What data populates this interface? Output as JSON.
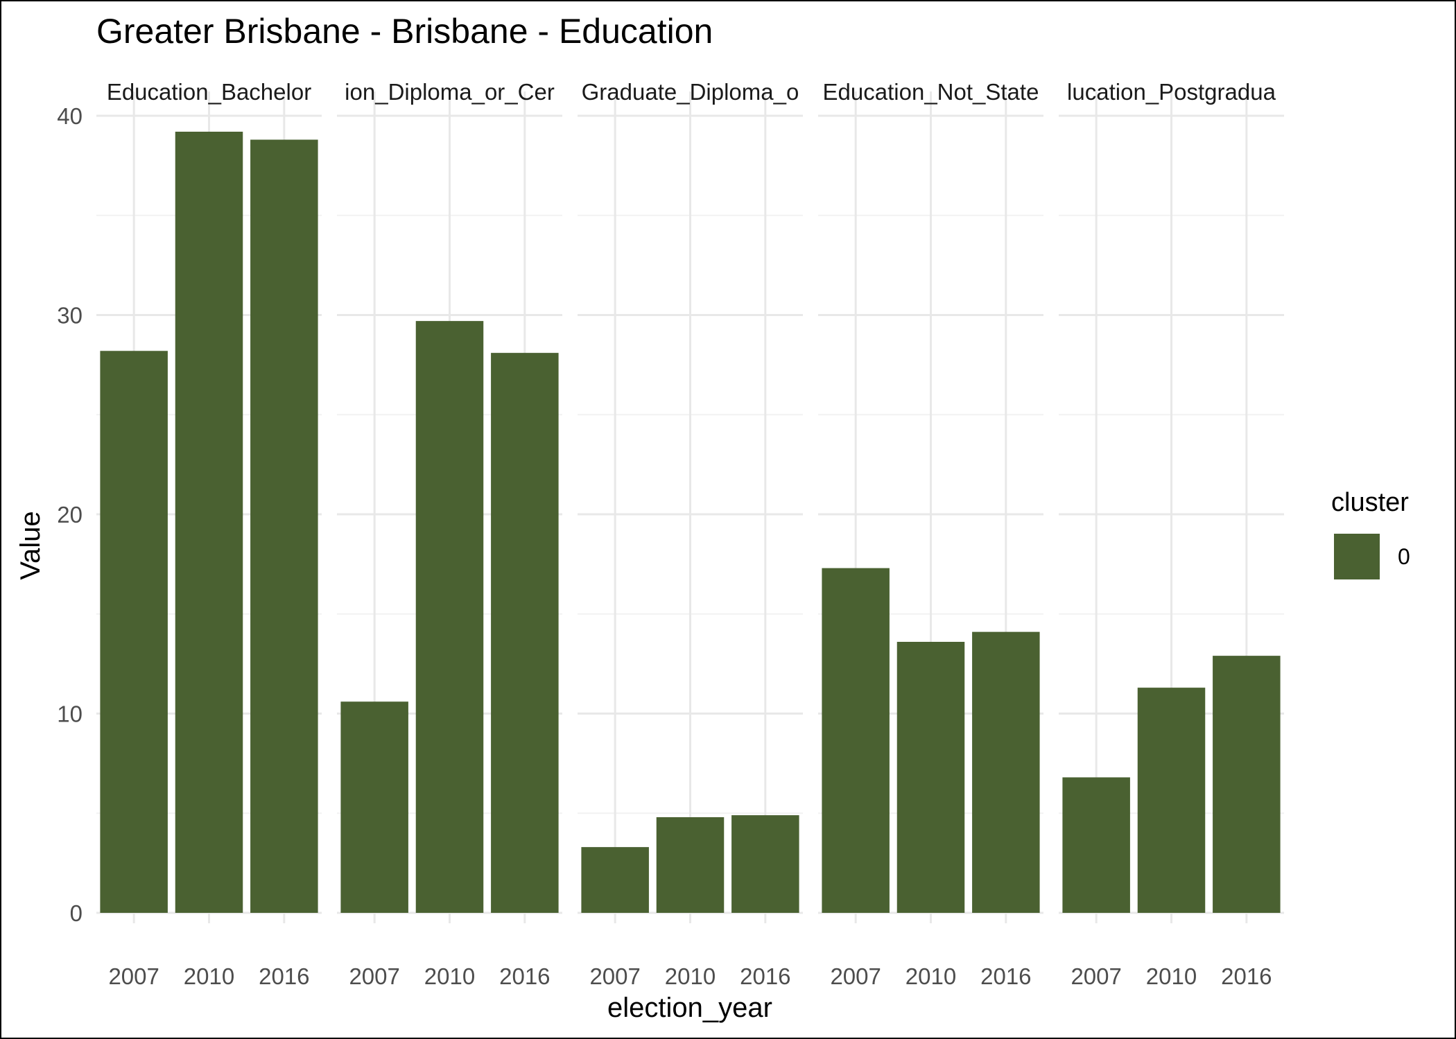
{
  "chart_data": {
    "type": "bar",
    "title": "Greater Brisbane - Brisbane - Education",
    "xlabel": "election_year",
    "ylabel": "Value",
    "ylim": [
      0,
      40
    ],
    "yticks": [
      0,
      10,
      20,
      30,
      40
    ],
    "categories": [
      "2007",
      "2010",
      "2016"
    ],
    "facets": [
      {
        "label": "Education_Bachelor",
        "values": [
          28.2,
          39.2,
          38.8
        ]
      },
      {
        "label": "ion_Diploma_or_Cer",
        "values": [
          10.6,
          29.7,
          28.1
        ]
      },
      {
        "label": "Graduate_Diploma_o",
        "values": [
          3.3,
          4.8,
          4.9
        ]
      },
      {
        "label": "Education_Not_State",
        "values": [
          17.3,
          13.6,
          14.1
        ]
      },
      {
        "label": "lucation_Postgradua",
        "values": [
          6.8,
          11.3,
          12.9
        ]
      }
    ],
    "legend": {
      "title": "cluster",
      "items": [
        {
          "label": "0",
          "color": "#4a6131"
        }
      ],
      "position": "right"
    },
    "grid": true,
    "bar_color": "#4a6131"
  }
}
